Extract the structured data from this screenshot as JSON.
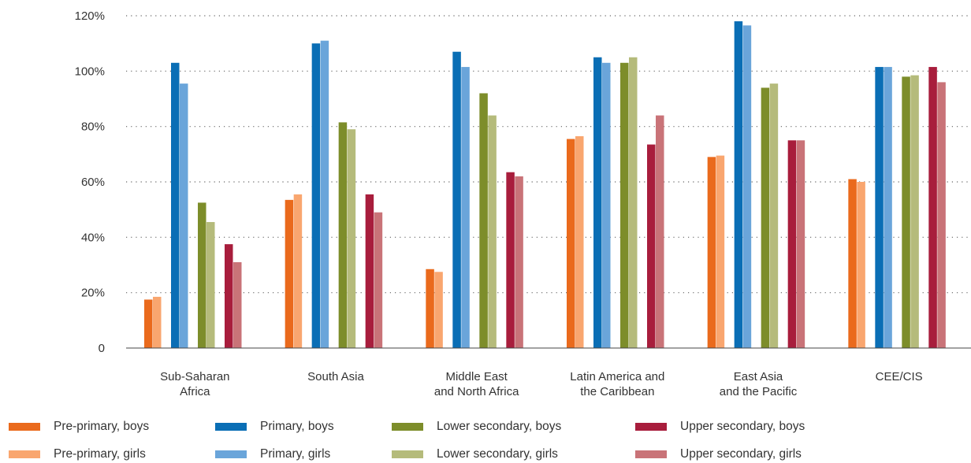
{
  "chart_data": {
    "type": "bar",
    "title": "",
    "xlabel": "",
    "ylabel": "",
    "ylim": [
      0,
      120
    ],
    "yticks": [
      0,
      20,
      40,
      60,
      80,
      100,
      120
    ],
    "ytick_labels": [
      "0",
      "20%",
      "40%",
      "60%",
      "80%",
      "100%",
      "120%"
    ],
    "grid": "horizontal dotted",
    "legend_position": "bottom",
    "categories": [
      [
        "Sub-Saharan",
        "Africa"
      ],
      [
        "South Asia"
      ],
      [
        "Middle East",
        "and North Africa"
      ],
      [
        "Latin America and",
        "the Caribbean"
      ],
      [
        "East Asia",
        "and the Pacific"
      ],
      [
        "CEE/CIS"
      ]
    ],
    "series": [
      {
        "name": "Pre-primary, boys",
        "color": "#ea6a1c",
        "values": [
          17.5,
          53.5,
          28.5,
          75.5,
          69,
          61
        ]
      },
      {
        "name": "Pre-primary, girls",
        "color": "#f9a66f",
        "values": [
          18.5,
          55.5,
          27.5,
          76.5,
          69.5,
          60
        ]
      },
      {
        "name": "Primary, boys",
        "color": "#0a6eb5",
        "values": [
          103,
          110,
          107,
          105,
          118,
          101.5
        ]
      },
      {
        "name": "Primary, girls",
        "color": "#6aa5da",
        "values": [
          95.5,
          111,
          101.5,
          103,
          116.5,
          101.5
        ]
      },
      {
        "name": "Lower secondary, boys",
        "color": "#7d8d2a",
        "values": [
          52.5,
          81.5,
          92,
          103,
          94,
          98
        ]
      },
      {
        "name": "Lower secondary, girls",
        "color": "#b5bb7b",
        "values": [
          45.5,
          79,
          84,
          105,
          95.5,
          98.5
        ]
      },
      {
        "name": "Upper secondary, boys",
        "color": "#a81d3c",
        "values": [
          37.5,
          55.5,
          63.5,
          73.5,
          75,
          101.5
        ]
      },
      {
        "name": "Upper secondary, girls",
        "color": "#c97378",
        "values": [
          31,
          49,
          62,
          84,
          75,
          96
        ]
      }
    ]
  }
}
